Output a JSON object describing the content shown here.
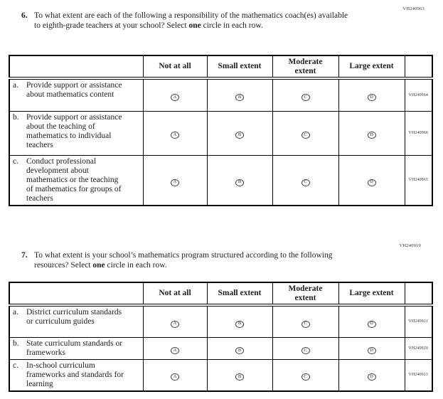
{
  "circle_letters": [
    "A",
    "B",
    "C",
    "D"
  ],
  "q6": {
    "number": "6.",
    "code": "VH240963",
    "prompt": {
      "start": "To what extent are each of the following a responsibility of the mathematics coach(es) available to eighth-grade teachers at your school? Select ",
      "bold": "one",
      "end": " circle in each row."
    },
    "columns": [
      "Not at all",
      "Small extent",
      "Moderate\nextent",
      "Large extent"
    ],
    "rows": [
      {
        "letter": "a.",
        "label": "Provide support or assistance about mathematics content",
        "code": "VH240964"
      },
      {
        "letter": "b.",
        "label": "Provide support or assistance about the teaching of mathematics to individual teachers",
        "code": "VH240966"
      },
      {
        "letter": "c.",
        "label": "Conduct professional development about mathematics or the teaching of mathematics for groups of teachers",
        "code": "VH240965"
      }
    ]
  },
  "q7": {
    "number": "7.",
    "code": "VH240919",
    "prompt": {
      "start": "To what extent is your school’s mathematics program structured according to the following resources? Select ",
      "bold": "one",
      "end": " circle in each row."
    },
    "columns": [
      "Not at all",
      "Small extent",
      "Moderate\nextent",
      "Large extent"
    ],
    "rows": [
      {
        "letter": "a.",
        "label": "District curriculum standards or curriculum guides",
        "code": "VH240921"
      },
      {
        "letter": "b.",
        "label": "State curriculum standards or frameworks",
        "code": "VH240920"
      },
      {
        "letter": "c.",
        "label": "In-school curriculum frameworks and standards for learning",
        "code": "VH240923"
      }
    ]
  }
}
